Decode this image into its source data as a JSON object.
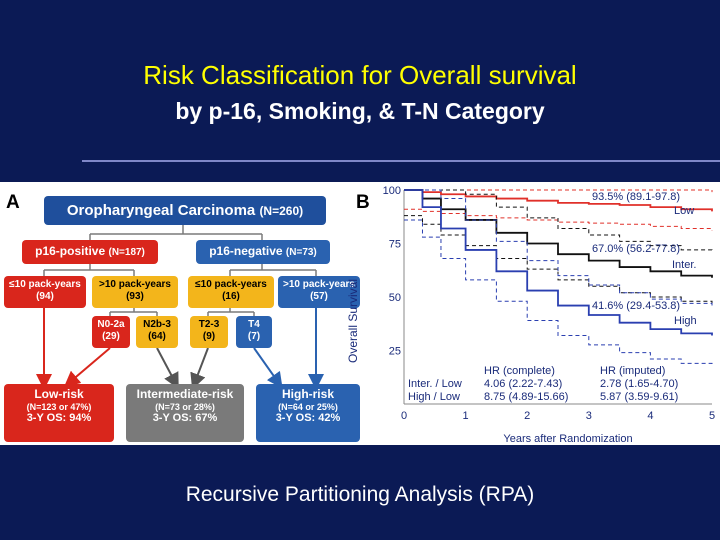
{
  "title": "Risk Classification for Overall survival",
  "subtitle": "by p-16, Smoking, & T-N Category",
  "footer": "Recursive Partitioning Analysis (RPA)",
  "panel_a": {
    "letter": "A",
    "root": "Oropharyngeal Carcinoma",
    "root_n": "(N=260)",
    "p16_pos": "p16-positive",
    "p16_pos_n": "(N=187)",
    "p16_neg": "p16-negative",
    "p16_neg_n": "(N=73)",
    "pos_low_smoke": "≤10 pack-years",
    "pos_low_smoke_n": "(94)",
    "pos_high_smoke": ">10 pack-years",
    "pos_high_smoke_n": "(93)",
    "neg_low_smoke": "≤10 pack-years",
    "neg_low_smoke_n": "(16)",
    "neg_high_smoke": ">10 pack-years",
    "neg_high_smoke_n": "(57)",
    "n02a": "N0-2a",
    "n02a_n": "(29)",
    "n2b3": "N2b-3",
    "n2b3_n": "(64)",
    "t23": "T2-3",
    "t23_n": "(9)",
    "t4": "T4",
    "t4_n": "(7)",
    "low": {
      "title": "Low-risk",
      "n": "(N=123 or 47%)",
      "os": "3-Y OS: 94%"
    },
    "int": {
      "title": "Intermediate-risk",
      "n": "(N=73 or 28%)",
      "os": "3-Y OS: 67%"
    },
    "high": {
      "title": "High-risk",
      "n": "(N=64 or 25%)",
      "os": "3-Y OS: 42%"
    },
    "colors": {
      "pos": "#d9261c",
      "neg": "#2a62b0",
      "gold": "#f3b51b",
      "root": "#1f4f9c",
      "grey": "#7a7a7a"
    }
  },
  "panel_b": {
    "letter": "B",
    "chart_data": {
      "type": "line",
      "xlabel": "Years after Randomization",
      "ylabel": "Overall Survival",
      "xlim": [
        0,
        5
      ],
      "ylim": [
        0,
        100
      ],
      "x_ticks": [
        "0",
        "1",
        "2",
        "3",
        "4",
        "5"
      ],
      "y_ticks": [
        "25",
        "50",
        "75",
        "100"
      ],
      "series": [
        {
          "name": "Low",
          "color": "#e0302a",
          "x": [
            0,
            0.3,
            0.6,
            1,
            1.5,
            2,
            2.5,
            3,
            3.5,
            4,
            4.5,
            5
          ],
          "y": [
            100,
            99,
            98,
            97,
            96,
            95,
            94,
            93.5,
            93,
            92,
            91,
            90
          ]
        },
        {
          "name": "Inter.",
          "color": "#111111",
          "x": [
            0,
            0.3,
            0.6,
            1,
            1.5,
            2,
            2.5,
            3,
            3.5,
            4,
            4.5,
            5
          ],
          "y": [
            100,
            96,
            91,
            86,
            80,
            75,
            70,
            67,
            64,
            62,
            60,
            59
          ]
        },
        {
          "name": "High",
          "color": "#2a3fb0",
          "x": [
            0,
            0.3,
            0.6,
            1,
            1.5,
            2,
            2.5,
            3,
            3.5,
            4,
            4.5,
            5
          ],
          "y": [
            100,
            92,
            82,
            72,
            62,
            53,
            46,
            41.6,
            38,
            35,
            33,
            32
          ]
        }
      ],
      "annotations": {
        "low": "93.5% (89.1-97.8)",
        "low_label": "Low",
        "int": "67.0% (56.2-77.8)",
        "int_label": "Inter.",
        "high": "41.6% (29.4-53.8)",
        "high_label": "High"
      },
      "hr_table": {
        "col1": "HR (complete)",
        "col2": "HR (imputed)",
        "row1_label": "Inter. / Low",
        "row1_c1": "4.06 (2.22-7.43)",
        "row1_c2": "2.78 (1.65-4.70)",
        "row2_label": "High / Low",
        "row2_c1": "8.75 (4.89-15.66)",
        "row2_c2": "5.87 (3.59-9.61)"
      }
    }
  }
}
